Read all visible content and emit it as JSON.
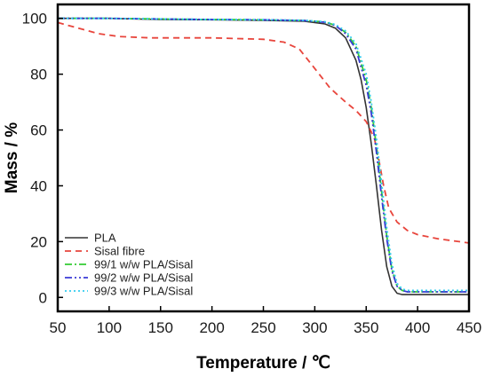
{
  "chart_data": {
    "type": "line",
    "xlabel": "Temperature / ℃",
    "ylabel": "Mass / %",
    "xlim": [
      50,
      450
    ],
    "ylim": [
      -5,
      105
    ],
    "xticks": [
      50,
      100,
      150,
      200,
      250,
      300,
      350,
      400,
      450
    ],
    "yticks": [
      0,
      20,
      40,
      60,
      80,
      100
    ],
    "grid": false,
    "legend_position": "bottom-left",
    "series": [
      {
        "name": "PLA",
        "color": "#333333",
        "dash": "solid",
        "x": [
          50,
          100,
          150,
          200,
          250,
          290,
          310,
          320,
          330,
          340,
          345,
          350,
          355,
          360,
          365,
          370,
          375,
          380,
          385,
          390,
          400,
          450
        ],
        "y": [
          100,
          100,
          99.6,
          99.5,
          99.3,
          99,
          98,
          96.5,
          93,
          85,
          78,
          68,
          55,
          40,
          24,
          11,
          4,
          1.5,
          1,
          1,
          1,
          1
        ]
      },
      {
        "name": "Sisal fibre",
        "color": "#e8453c",
        "dash": "dashed",
        "x": [
          50,
          60,
          75,
          90,
          110,
          140,
          200,
          250,
          270,
          285,
          300,
          315,
          330,
          340,
          350,
          358,
          362,
          367,
          372,
          380,
          390,
          400,
          420,
          450
        ],
        "y": [
          98.5,
          97.5,
          96,
          94.5,
          93.5,
          93,
          93,
          92.5,
          91.5,
          89,
          82,
          75,
          70,
          67,
          63,
          57,
          50,
          40,
          32,
          27,
          24,
          22.5,
          21,
          19.5
        ]
      },
      {
        "name": "99/1 w/w PLA/Sisal",
        "color": "#33cc33",
        "dash": "dashdot",
        "x": [
          50,
          100,
          150,
          200,
          250,
          290,
          310,
          320,
          330,
          340,
          350,
          355,
          360,
          365,
          370,
          375,
          380,
          385,
          390,
          400,
          450
        ],
        "y": [
          100,
          100,
          99.8,
          99.6,
          99.5,
          99.2,
          98.7,
          97.5,
          95,
          90,
          78,
          68,
          54,
          38,
          22,
          10,
          4,
          2.5,
          2,
          2,
          2
        ]
      },
      {
        "name": "99/2 w/w PLA/Sisal",
        "color": "#3a3ad6",
        "dash": "dashdotdot",
        "x": [
          50,
          100,
          150,
          200,
          250,
          290,
          310,
          320,
          330,
          340,
          350,
          355,
          360,
          365,
          370,
          375,
          380,
          385,
          390,
          400,
          450
        ],
        "y": [
          100,
          100,
          99.8,
          99.6,
          99.5,
          99.2,
          98.6,
          97.5,
          94.5,
          89,
          76,
          66,
          52,
          36,
          21,
          9.5,
          4,
          2.5,
          2,
          2,
          2
        ]
      },
      {
        "name": "99/3 w/w PLA/Sisal",
        "color": "#33ccee",
        "dash": "dotted",
        "x": [
          50,
          100,
          150,
          200,
          250,
          290,
          310,
          320,
          330,
          340,
          350,
          355,
          360,
          365,
          370,
          375,
          380,
          385,
          390,
          400,
          450
        ],
        "y": [
          100,
          100,
          99.8,
          99.6,
          99.5,
          99.3,
          98.8,
          97.8,
          95.5,
          91,
          80,
          70,
          57,
          41,
          25,
          12,
          5,
          3,
          2.5,
          2.5,
          2.5
        ]
      }
    ]
  }
}
